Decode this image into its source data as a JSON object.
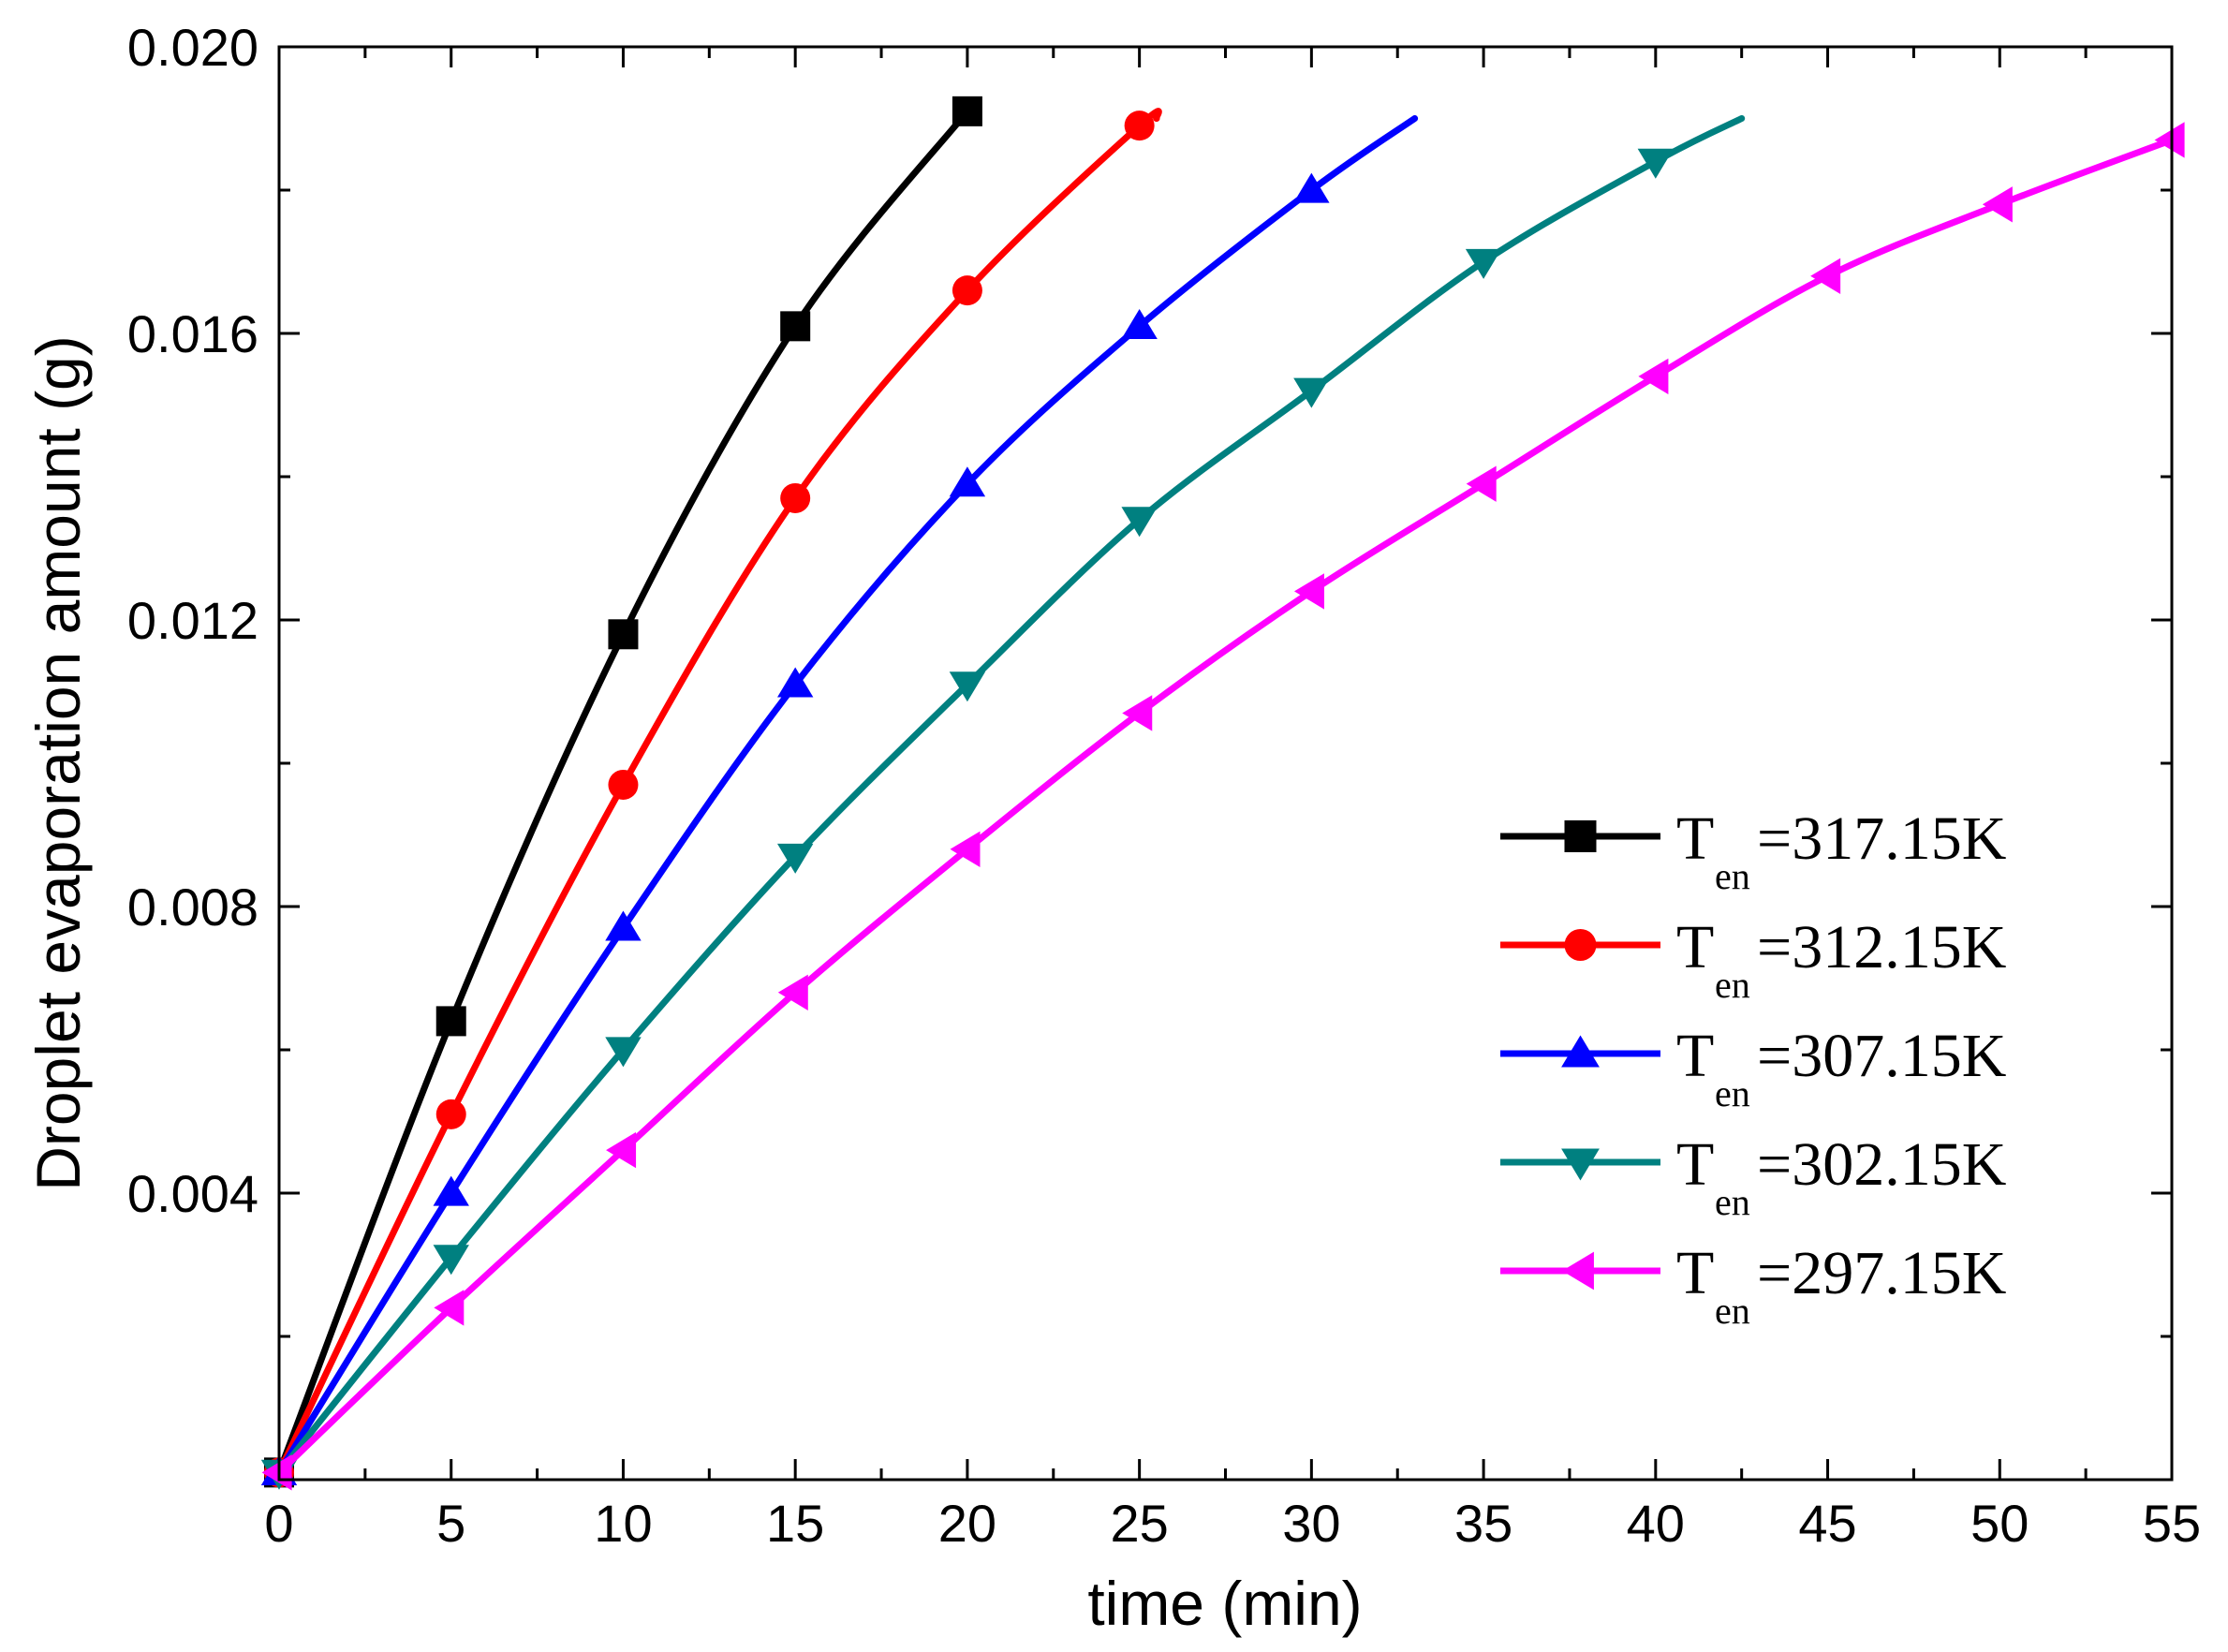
{
  "chart_data": {
    "type": "line",
    "xlabel": "time  (min)",
    "ylabel": "Droplet evaporation amount (g)",
    "xlim": [
      0,
      55
    ],
    "ylim": [
      0,
      0.02
    ],
    "xticks": [
      0,
      5,
      10,
      15,
      20,
      25,
      30,
      35,
      40,
      45,
      50,
      55
    ],
    "xtick_labels": [
      "0",
      "5",
      "10",
      "15",
      "20",
      "25",
      "30",
      "35",
      "40",
      "45",
      "50",
      "55"
    ],
    "yticks": [
      0.004,
      0.008,
      0.012,
      0.016,
      0.02
    ],
    "ytick_labels": [
      "0.004",
      "0.008",
      "0.012",
      "0.016",
      "0.020"
    ],
    "legend_position": "right-middle",
    "series": [
      {
        "name": "T_en=317.15K",
        "label_main": "T",
        "label_sub": "en",
        "label_rest": "=317.15K",
        "color": "#000000",
        "marker": "square",
        "x": [
          0,
          5,
          10,
          15,
          20
        ],
        "values": [
          0.0001,
          0.0064,
          0.0118,
          0.0161,
          0.0191
        ],
        "line_end": [
          20,
          0.0191
        ]
      },
      {
        "name": "T_en=312.15K",
        "label_main": "T",
        "label_sub": "en",
        "label_rest": "=312.15K",
        "color": "#ff0000",
        "marker": "circle",
        "x": [
          0,
          5,
          10,
          15,
          20,
          25
        ],
        "values": [
          0.0001,
          0.0051,
          0.0097,
          0.0137,
          0.0166,
          0.0189
        ],
        "line_end": [
          25.5,
          0.019
        ]
      },
      {
        "name": "T_en=307.15K",
        "label_main": "T",
        "label_sub": "en",
        "label_rest": "=307.15K",
        "color": "#0000ff",
        "marker": "triangle-up",
        "x": [
          0,
          5,
          10,
          15,
          20,
          25,
          30
        ],
        "values": [
          0.0001,
          0.004,
          0.0077,
          0.0111,
          0.0139,
          0.0161,
          0.018
        ],
        "line_end": [
          33,
          0.019
        ]
      },
      {
        "name": "T_en=302.15K",
        "label_main": "T",
        "label_sub": "en",
        "label_rest": "=302.15K",
        "color": "#008080",
        "marker": "triangle-down",
        "x": [
          0,
          5,
          10,
          15,
          20,
          25,
          30,
          35,
          40
        ],
        "values": [
          0.0001,
          0.0031,
          0.006,
          0.0087,
          0.0111,
          0.0134,
          0.0152,
          0.017,
          0.0184
        ],
        "line_end": [
          42.5,
          0.019
        ]
      },
      {
        "name": "T_en=297.15K",
        "label_main": "T",
        "label_sub": "en",
        "label_rest": "=297.15K",
        "color": "#ff00ff",
        "marker": "triangle-left",
        "x": [
          0,
          5,
          10,
          15,
          20,
          25,
          30,
          35,
          40,
          45,
          50,
          55
        ],
        "values": [
          0.0001,
          0.0024,
          0.0046,
          0.0068,
          0.0088,
          0.0107,
          0.0124,
          0.0139,
          0.0154,
          0.0168,
          0.0178,
          0.0187
        ],
        "line_end": [
          55,
          0.0187
        ]
      }
    ]
  }
}
